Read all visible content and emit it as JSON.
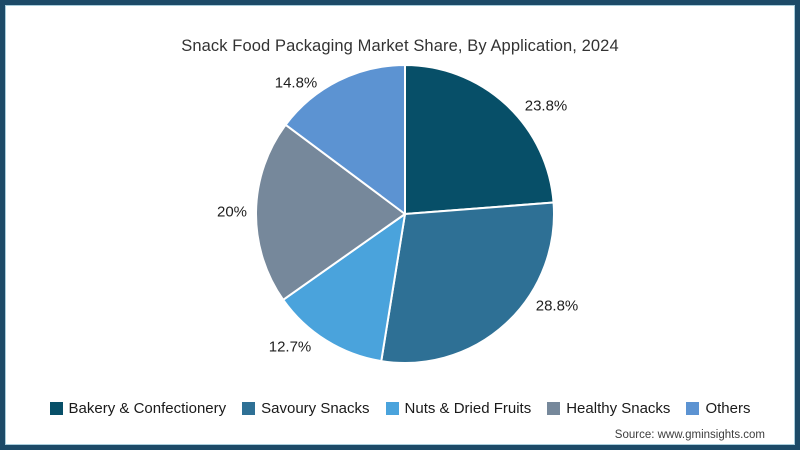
{
  "title": "Snack Food Packaging Market Share, By Application, 2024",
  "source": "Source: www.gminsights.com",
  "colors": {
    "frame_border": "#1d4a68",
    "frame_inner_line": "#a8cddc",
    "slice_gap_stroke": "#ffffff",
    "title_text": "#333333",
    "label_text": "#1f1f1f"
  },
  "chart_data": {
    "type": "pie",
    "title": "Snack Food Packaging Market Share, By Application, 2024",
    "legend_position": "bottom",
    "start_angle": "12-o-clock, clockwise",
    "slices": [
      {
        "label": "Bakery & Confectionery",
        "value": 23.8,
        "display": "23.8%",
        "color": "#074f68"
      },
      {
        "label": "Savoury Snacks",
        "value": 28.8,
        "display": "28.8%",
        "color": "#2e7095"
      },
      {
        "label": "Nuts & Dried Fruits",
        "value": 12.7,
        "display": "12.7%",
        "color": "#4aa3dc"
      },
      {
        "label": "Healthy Snacks",
        "value": 20,
        "display": "20%",
        "color": "#76889b"
      },
      {
        "label": "Others",
        "value": 14.8,
        "display": "14.8%",
        "color": "#5c93d2"
      }
    ]
  }
}
